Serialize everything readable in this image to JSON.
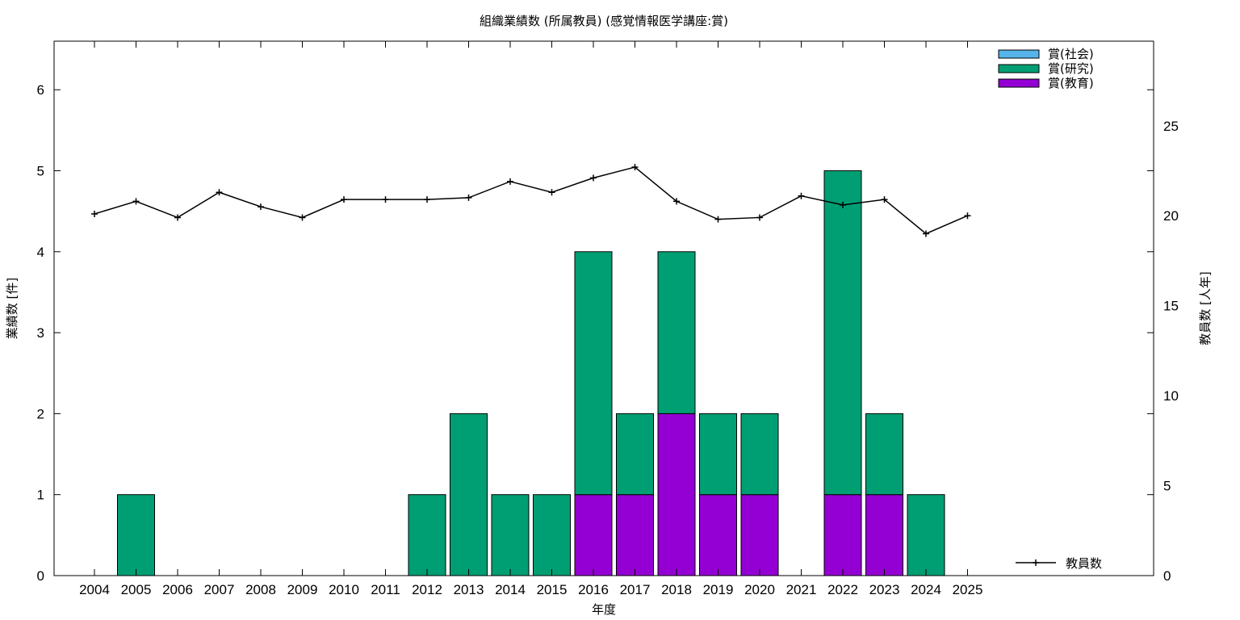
{
  "chart_data": {
    "type": "bar",
    "title": "組織業績数 (所属教員) (感覚情報医学講座:賞)",
    "xlabel": "年度",
    "ylabel": "業績数 [件]",
    "y2label": "教員数 [人年]",
    "ylim": [
      0,
      6.6
    ],
    "y2lim": [
      0,
      29.7
    ],
    "yticks": [
      "0",
      "1",
      "2",
      "3",
      "4",
      "5",
      "6"
    ],
    "y2ticks": [
      "0",
      "5",
      "10",
      "15",
      "20",
      "25"
    ],
    "categories": [
      "2004",
      "2005",
      "2006",
      "2007",
      "2008",
      "2009",
      "2010",
      "2011",
      "2012",
      "2013",
      "2014",
      "2015",
      "2016",
      "2017",
      "2018",
      "2019",
      "2020",
      "2021",
      "2022",
      "2023",
      "2024",
      "2025"
    ],
    "stacked": true,
    "series": [
      {
        "name": "賞(教育)",
        "color": "#9400d3",
        "values": [
          0,
          0,
          0,
          0,
          0,
          0,
          0,
          0,
          0,
          0,
          0,
          0,
          1,
          1,
          2,
          1,
          1,
          0,
          1,
          1,
          0,
          0
        ]
      },
      {
        "name": "賞(研究)",
        "color": "#009e73",
        "values": [
          0,
          1,
          0,
          0,
          0,
          0,
          0,
          0,
          1,
          2,
          1,
          1,
          3,
          1,
          2,
          1,
          1,
          0,
          4,
          1,
          1,
          0
        ]
      },
      {
        "name": "賞(社会)",
        "color": "#56b4e9",
        "values": [
          0,
          0,
          0,
          0,
          0,
          0,
          0,
          0,
          0,
          0,
          0,
          0,
          0,
          0,
          0,
          0,
          0,
          0,
          0,
          0,
          0,
          0
        ]
      }
    ],
    "line_series": {
      "name": "教員数",
      "axis": "y2",
      "color": "#000000",
      "values": [
        20.1,
        20.8,
        19.9,
        21.3,
        20.5,
        19.9,
        20.9,
        20.9,
        20.9,
        21.0,
        21.9,
        21.3,
        22.1,
        22.7,
        20.8,
        19.8,
        19.9,
        21.1,
        20.6,
        20.9,
        19.0,
        20.0
      ]
    },
    "legend_position": "top-right",
    "legend_line_position": "bottom-right",
    "grid": false
  }
}
